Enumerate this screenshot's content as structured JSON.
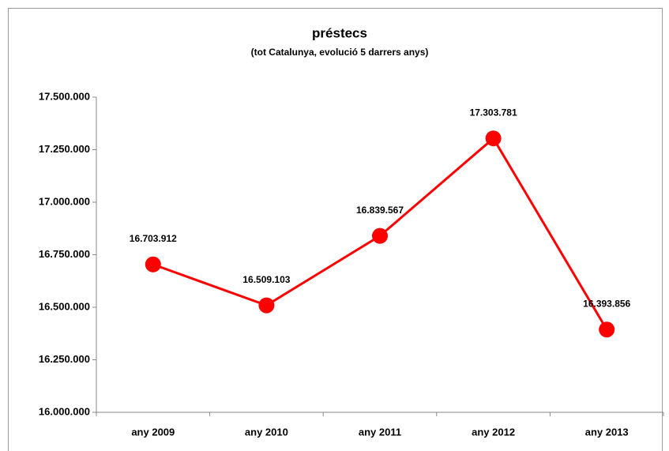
{
  "chart_data": {
    "type": "line",
    "title": "préstecs",
    "subtitle": "(tot Catalunya, evolució 5 darrers anys)",
    "categories": [
      "any 2009",
      "any 2010",
      "any 2011",
      "any 2012",
      "any 2013"
    ],
    "series": [
      {
        "name": "préstecs",
        "color": "#ff0000",
        "values": [
          16703912,
          16509103,
          16839567,
          17303781,
          16393856
        ],
        "value_labels": [
          "16.703.912",
          "16.509.103",
          "16.839.567",
          "17.303.781",
          "16.393.856"
        ]
      }
    ],
    "ylim": [
      16000000,
      17500000
    ],
    "yticks": [
      {
        "value": 16000000,
        "label": "16.000.000"
      },
      {
        "value": 16250000,
        "label": "16.250.000"
      },
      {
        "value": 16500000,
        "label": "16.500.000"
      },
      {
        "value": 16750000,
        "label": "16.750.000"
      },
      {
        "value": 17000000,
        "label": "17.000.000"
      },
      {
        "value": 17250000,
        "label": "17.250.000"
      },
      {
        "value": 17500000,
        "label": "17.500.000"
      }
    ],
    "grid": false
  }
}
